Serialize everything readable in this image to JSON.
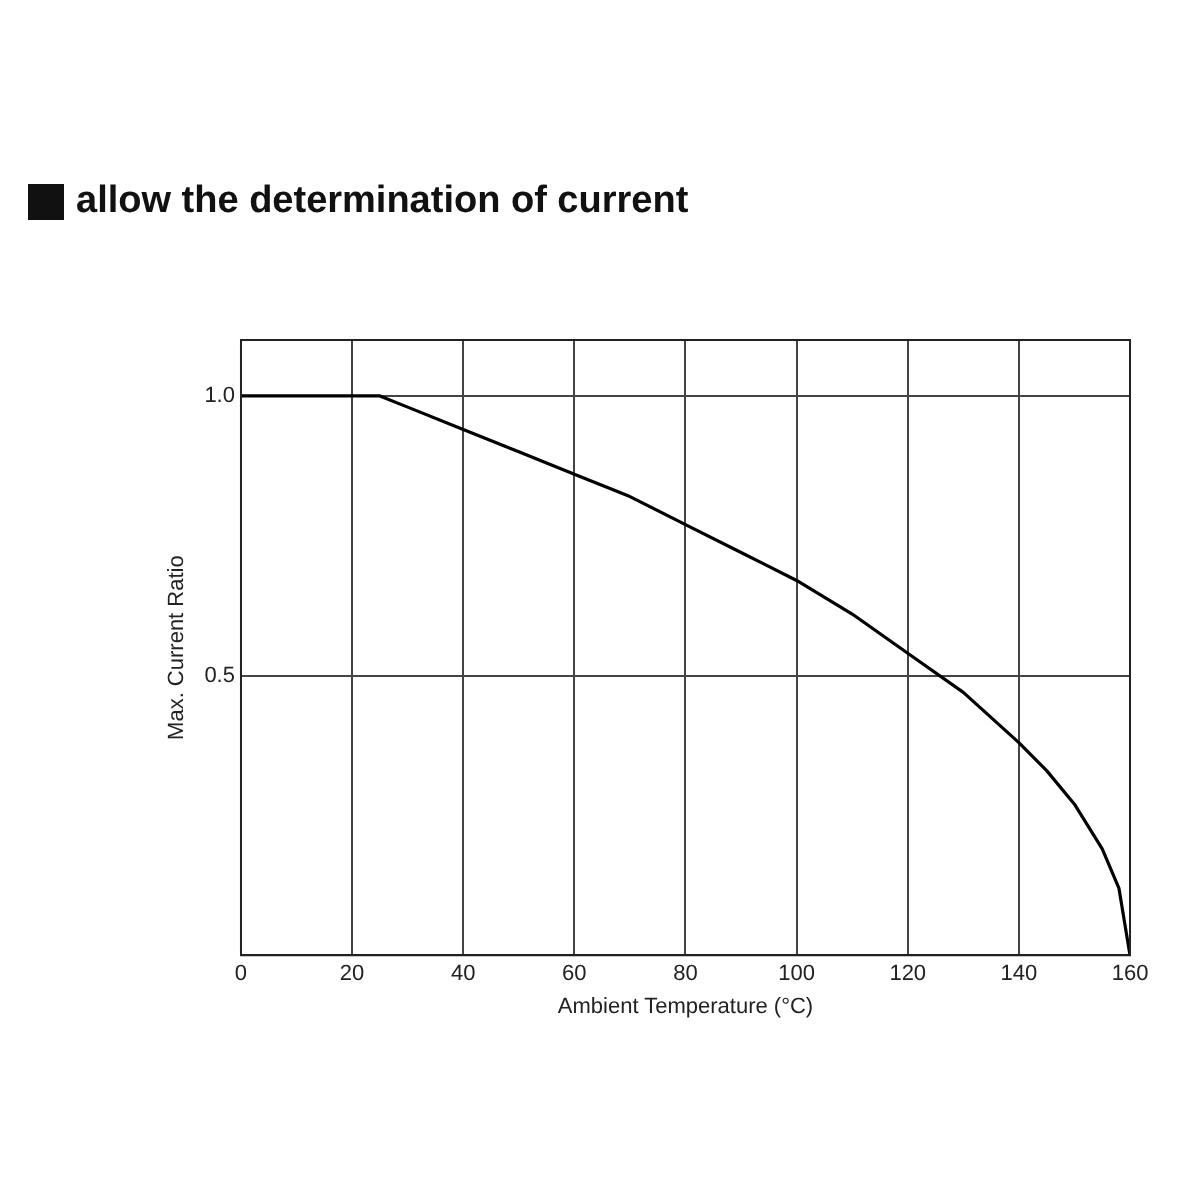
{
  "chart_data": {
    "type": "line",
    "title": "allow the determination of current",
    "xlabel": "Ambient Temperature (°C)",
    "ylabel": "Max. Current Ratio",
    "x": [
      0,
      25,
      30,
      40,
      50,
      60,
      70,
      80,
      90,
      100,
      110,
      120,
      130,
      140,
      145,
      150,
      155,
      158,
      160
    ],
    "series": [
      {
        "color": "#000000",
        "values": [
          1,
          1,
          0.98,
          0.94,
          0.9,
          0.86,
          0.82,
          0.77,
          0.72,
          0.67,
          0.61,
          0.54,
          0.47,
          0.38,
          0.33,
          0.27,
          0.19,
          0.12,
          0
        ]
      }
    ],
    "xlim": [
      0,
      160
    ],
    "xticks": [
      0,
      20,
      40,
      60,
      80,
      100,
      120,
      140,
      160
    ],
    "ylim": [
      0,
      1.1
    ],
    "yticks": [
      {
        "value": 0.5,
        "label": "0.5"
      },
      {
        "value": 1,
        "label": "1.0"
      }
    ],
    "grid": true,
    "legend": false,
    "marker": "none",
    "line_style": "solid"
  }
}
